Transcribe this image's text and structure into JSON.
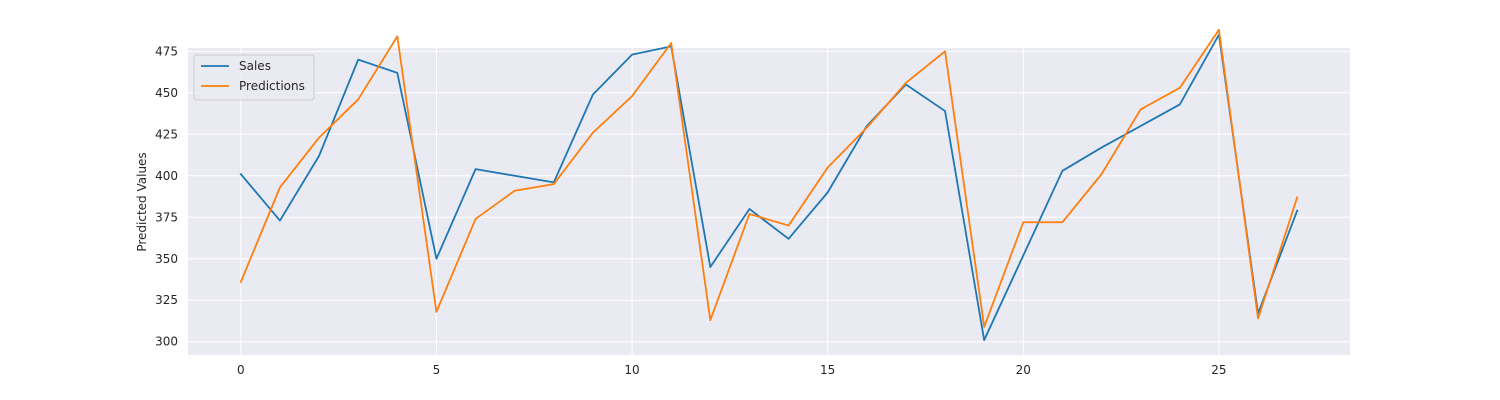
{
  "chart_data": {
    "type": "line",
    "title": "",
    "xlabel": "",
    "ylabel": "Predicted Values",
    "x": [
      0,
      1,
      2,
      3,
      4,
      5,
      6,
      7,
      8,
      9,
      10,
      11,
      12,
      13,
      14,
      15,
      16,
      17,
      18,
      19,
      20,
      21,
      22,
      23,
      24,
      25,
      26,
      27
    ],
    "xlim": [
      -1.35,
      28.35
    ],
    "ylim": [
      292,
      477
    ],
    "xticks": [
      0,
      5,
      10,
      15,
      20,
      25
    ],
    "yticks": [
      300,
      325,
      350,
      375,
      400,
      425,
      450,
      475
    ],
    "grid": true,
    "legend_position": "upper-left",
    "colors": {
      "background": "#eaeaf2",
      "grid": "#ffffff",
      "text": "#262626"
    },
    "series": [
      {
        "name": "Sales",
        "color": "#1f77b4",
        "values": [
          401,
          373,
          412,
          470,
          462,
          350,
          404,
          400,
          396,
          449,
          473,
          478,
          345,
          380,
          362,
          390,
          430,
          455,
          439,
          301,
          352,
          403,
          417,
          430,
          443,
          485,
          317,
          379
        ]
      },
      {
        "name": "Predictions",
        "color": "#ff7f0e",
        "values": [
          336,
          393,
          423,
          446,
          484,
          318,
          374,
          391,
          395,
          426,
          448,
          480,
          313,
          377,
          370,
          405,
          429,
          456,
          475,
          309,
          372,
          372,
          401,
          440,
          453,
          488,
          314,
          387
        ]
      }
    ]
  }
}
